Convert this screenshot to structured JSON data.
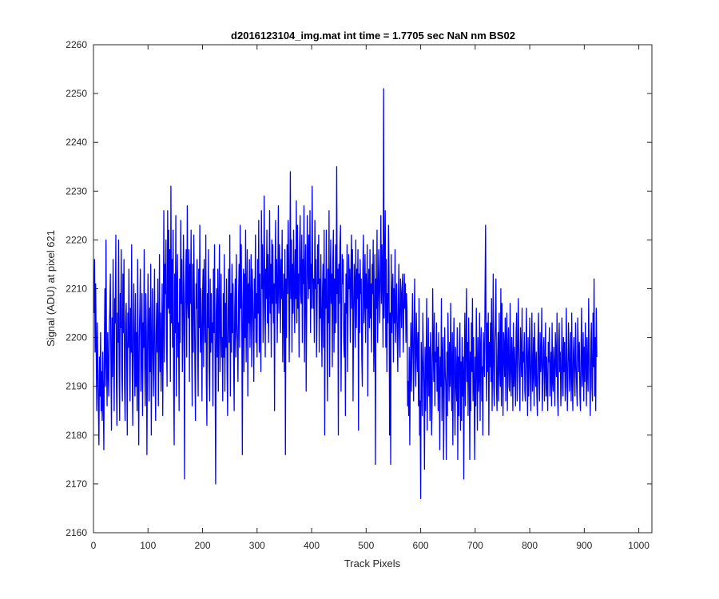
{
  "chart_data": {
    "type": "line",
    "title": "d2016123104_img.mat int time = 1.7705 sec  NaN nm BS02",
    "xlabel": "Track Pixels",
    "ylabel": "Signal (ADU) at pixel 621",
    "xlim": [
      0,
      1024
    ],
    "ylim": [
      2160,
      2260
    ],
    "xticks": [
      0,
      100,
      200,
      300,
      400,
      500,
      600,
      700,
      800,
      900,
      1000
    ],
    "yticks": [
      2160,
      2170,
      2180,
      2190,
      2200,
      2210,
      2220,
      2230,
      2240,
      2250,
      2260
    ],
    "grid": false,
    "series": [
      {
        "color": "#0000ff",
        "x_start": 1,
        "x_step": 1,
        "values": [
          2205,
          2216,
          2197,
          2211,
          2198,
          2185,
          2203,
          2194,
          2186,
          2178,
          2196,
          2188,
          2201,
          2185,
          2193,
          2183,
          2197,
          2187,
          2177,
          2199,
          2210,
          2190,
          2220,
          2196,
          2186,
          2201,
          2193,
          2188,
          2202,
          2206,
          2213,
          2195,
          2181,
          2204,
          2192,
          2216,
          2198,
          2185,
          2208,
          2203,
          2221,
          2191,
          2182,
          2205,
          2199,
          2220,
          2195,
          2183,
          2209,
          2202,
          2218,
          2193,
          2187,
          2213,
          2201,
          2216,
          2190,
          2183,
          2203,
          2207,
          2196,
          2180,
          2205,
          2198,
          2214,
          2200,
          2187,
          2206,
          2197,
          2219,
          2193,
          2182,
          2202,
          2211,
          2196,
          2188,
          2209,
          2190,
          2201,
          2185,
          2216,
          2193,
          2178,
          2200,
          2206,
          2214,
          2189,
          2197,
          2209,
          2184,
          2203,
          2198,
          2218,
          2194,
          2186,
          2209,
          2201,
          2176,
          2196,
          2213,
          2202,
          2187,
          2206,
          2193,
          2215,
          2180,
          2198,
          2210,
          2196,
          2188,
          2203,
          2214,
          2192,
          2183,
          2201,
          2207,
          2197,
          2212,
          2186,
          2199,
          2217,
          2193,
          2205,
          2189,
          2199,
          2211,
          2184,
          2202,
          2226,
          2195,
          2215,
          2209,
          2220,
          2199,
          2190,
          2226,
          2206,
          2222,
          2205,
          2218,
          2191,
          2231,
          2203,
          2216,
          2198,
          2222,
          2190,
          2178,
          2213,
          2201,
          2225,
          2188,
          2210,
          2217,
          2196,
          2203,
          2185,
          2212,
          2199,
          2224,
          2207,
          2216,
          2193,
          2201,
          2221,
          2209,
          2171,
          2203,
          2211,
          2218,
          2196,
          2227,
          2208,
          2204,
          2218,
          2191,
          2215,
          2207,
          2222,
          2200,
          2186,
          2215,
          2197,
          2221,
          2208,
          2194,
          2183,
          2211,
          2206,
          2216,
          2199,
          2188,
          2214,
          2202,
          2223,
          2197,
          2210,
          2201,
          2187,
          2208,
          2214,
          2194,
          2216,
          2205,
          2199,
          2221,
          2191,
          2182,
          2209,
          2202,
          2218,
          2194,
          2187,
          2212,
          2197,
          2209,
          2199,
          2203,
          2186,
          2214,
          2201,
          2219,
          2195,
          2170,
          2205,
          2210,
          2196,
          2214,
          2189,
          2206,
          2219,
          2193,
          2202,
          2213,
          2196,
          2200,
          2187,
          2209,
          2196,
          2217,
          2189,
          2207,
          2198,
          2212,
          2193,
          2184,
          2206,
          2214,
          2199,
          2221,
          2188,
          2209,
          2197,
          2215,
          2201,
          2211,
          2195,
          2185,
          2206,
          2212,
          2196,
          2217,
          2203,
          2199,
          2191,
          2208,
          2215,
          2198,
          2223,
          2206,
          2219,
          2202,
          2176,
          2207,
          2214,
          2193,
          2213,
          2200,
          2222,
          2195,
          2209,
          2218,
          2188,
          2211,
          2203,
          2216,
          2198,
          2207,
          2217,
          2194,
          2214,
          2209,
          2201,
          2191,
          2212,
          2204,
          2221,
          2199,
          2209,
          2196,
          2216,
          2205,
          2224,
          2197,
          2213,
          2201,
          2193,
          2226,
          2210,
          2219,
          2199,
          2206,
          2229,
          2213,
          2196,
          2214,
          2208,
          2222,
          2203,
          2217,
          2199,
          2210,
          2226,
          2205,
          2215,
          2196,
          2220,
          2207,
          2219,
          2203,
          2211,
          2185,
          2214,
          2224,
          2207,
          2216,
          2199,
          2210,
          2227,
          2205,
          2219,
          2213,
          2201,
          2216,
          2208,
          2222,
          2195,
          2206,
          2213,
          2193,
          2218,
          2176,
          2212,
          2200,
          2219,
          2209,
          2224,
          2216,
          2195,
          2211,
          2234,
          2208,
          2220,
          2197,
          2215,
          2205,
          2222,
          2210,
          2201,
          2218,
          2208,
          2228,
          2203,
          2223,
          2206,
          2213,
          2196,
          2219,
          2225,
          2209,
          2207,
          2221,
          2199,
          2216,
          2211,
          2227,
          2195,
          2213,
          2219,
          2189,
          2205,
          2225,
          2216,
          2208,
          2221,
          2210,
          2226,
          2201,
          2215,
          2206,
          2231,
          2214,
          2206,
          2212,
          2199,
          2224,
          2210,
          2216,
          2196,
          2206,
          2219,
          2211,
          2221,
          2197,
          2212,
          2204,
          2217,
          2203,
          2194,
          2210,
          2215,
          2198,
          2222,
          2180,
          2212,
          2206,
          2222,
          2205,
          2187,
          2214,
          2203,
          2226,
          2192,
          2210,
          2220,
          2207,
          2213,
          2194,
          2216,
          2222,
          2197,
          2212,
          2201,
          2219,
          2203,
          2235,
          2209,
          2214,
          2180,
          2215,
          2207,
          2219,
          2223,
          2189,
          2203,
          2217,
          2211,
          2216,
          2199,
          2196,
          2207,
          2184,
          2213,
          2205,
          2219,
          2193,
          2208,
          2217,
          2210,
          2214,
          2199,
          2212,
          2221,
          2206,
          2218,
          2187,
          2204,
          2215,
          2211,
          2198,
          2220,
          2202,
          2214,
          2208,
          2218,
          2181,
          2213,
          2201,
          2216,
          2209,
          2212,
          2196,
          2190,
          2214,
          2221,
          2203,
          2208,
          2217,
          2199,
          2213,
          2206,
          2219,
          2188,
          2210,
          2214,
          2202,
          2218,
          2204,
          2211,
          2197,
          2215,
          2209,
          2220,
          2193,
          2201,
          2217,
          2174,
          2212,
          2206,
          2222,
          2199,
          2208,
          2218,
          2210,
          2203,
          2214,
          2225,
          2207,
          2219,
          2211,
          2198,
          2251,
          2204,
          2212,
          2226,
          2198,
          2216,
          2193,
          2209,
          2203,
          2223,
          2213,
          2180,
          2205,
          2174,
          2217,
          2201,
          2208,
          2213,
          2195,
          2210,
          2203,
          2218,
          2199,
          2206,
          2211,
          2200,
          2193,
          2207,
          2215,
          2201,
          2196,
          2212,
          2209,
          2202,
          2210,
          2213,
          2197,
          2204,
          2213,
          2206,
          2211,
          2199,
          2209,
          2206,
          2186,
          2191,
          2184,
          2198,
          2178,
          2193,
          2203,
          2189,
          2199,
          2209,
          2196,
          2187,
          2202,
          2212,
          2195,
          2190,
          2205,
          2198,
          2193,
          2201,
          2186,
          2208,
          2180,
          2187,
          2167,
          2199,
          2192,
          2184,
          2205,
          2196,
          2190,
          2173,
          2198,
          2185,
          2195,
          2208,
          2181,
          2193,
          2204,
          2188,
          2198,
          2183,
          2201,
          2196,
          2180,
          2187,
          2210,
          2199,
          2191,
          2205,
          2186,
          2197,
          2195,
          2203,
          2189,
          2198,
          2185,
          2201,
          2193,
          2177,
          2196,
          2190,
          2208,
          2183,
          2196,
          2200,
          2175,
          2186,
          2202,
          2193,
          2190,
          2175,
          2197,
          2184,
          2205,
          2196,
          2187,
          2199,
          2190,
          2207,
          2193,
          2185,
          2201,
          2178,
          2196,
          2204,
          2189,
          2180,
          2198,
          2192,
          2187,
          2202,
          2175,
          2196,
          2184,
          2199,
          2203,
          2181,
          2195,
          2183,
          2200,
          2188,
          2196,
          2171,
          2193,
          2205,
          2186,
          2198,
          2210,
          2191,
          2199,
          2184,
          2204,
          2195,
          2175,
          2197,
          2185,
          2203,
          2193,
          2208,
          2187,
          2200,
          2190,
          2175,
          2196,
          2186,
          2206,
          2195,
          2181,
          2200,
          2189,
          2192,
          2205,
          2183,
          2198,
          2202,
          2187,
          2194,
          2180,
          2201,
          2196,
          2192,
          2209,
          2223,
          2197,
          2187,
          2203,
          2193,
          2205,
          2180,
          2199,
          2194,
          2203,
          2191,
          2208,
          2185,
          2197,
          2213,
          2190,
          2186,
          2199,
          2203,
          2212,
          2190,
          2185,
          2196,
          2201,
          2187,
          2205,
          2194,
          2190,
          2210,
          2186,
          2207,
          2195,
          2184,
          2201,
          2198,
          2192,
          2204,
          2187,
          2199,
          2205,
          2185,
          2197,
          2202,
          2190,
          2189,
          2207,
          2194,
          2188,
          2200,
          2196,
          2185,
          2203,
          2190,
          2198,
          2193,
          2186,
          2201,
          2205,
          2187,
          2195,
          2208,
          2199,
          2191,
          2185,
          2202,
          2197,
          2192,
          2206,
          2187,
          2197,
          2195,
          2201,
          2189,
          2187,
          2197,
          2206,
          2194,
          2184,
          2200,
          2188,
          2195,
          2204,
          2191,
          2185,
          2197,
          2205,
          2189,
          2193,
          2200,
          2186,
          2203,
          2194,
          2190,
          2197,
          2188,
          2184,
          2199,
          2205,
          2192,
          2187,
          2201,
          2193,
          2196,
          2206,
          2185,
          2191,
          2198,
          2200,
          2187,
          2194,
          2203,
          2188,
          2196,
          2190,
          2185,
          2199,
          2195,
          2202,
          2188,
          2193,
          2197,
          2186,
          2203,
          2191,
          2189,
          2198,
          2194,
          2186,
          2201,
          2196,
          2192,
          2205,
          2188,
          2184,
          2199,
          2203,
          2193,
          2197,
          2186,
          2190,
          2204,
          2195,
          2188,
          2200,
          2193,
          2199,
          2187,
          2190,
          2206,
          2196,
          2185,
          2192,
          2203,
          2198,
          2189,
          2194,
          2201,
          2187,
          2205,
          2191,
          2185,
          2197,
          2200,
          2192,
          2188,
          2203,
          2195,
          2190,
          2186,
          2204,
          2198,
          2193,
          2199,
          2188,
          2185,
          2197,
          2206,
          2190,
          2194,
          2201,
          2187,
          2198,
          2191,
          2203,
          2195,
          2186,
          2200,
          2193,
          2189,
          2208,
          2197,
          2192,
          2184,
          2199,
          2203,
          2190,
          2187,
          2205,
          2194,
          2212,
          2188,
          2200,
          2185,
          2206,
          2196
        ]
      }
    ]
  }
}
